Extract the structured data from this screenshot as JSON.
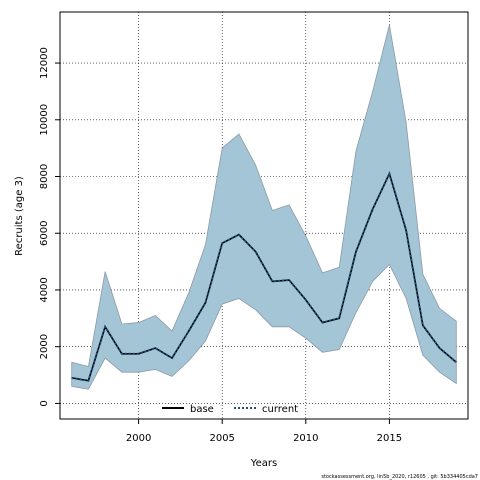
{
  "chart_data": {
    "type": "area",
    "xlabel": "Years",
    "ylabel": "Recruits (age 3)",
    "xlim": [
      1995.3,
      2019.7
    ],
    "ylim": [
      -550,
      13800
    ],
    "xticks": [
      2000,
      2005,
      2010,
      2015
    ],
    "yticks": [
      0,
      2000,
      4000,
      6000,
      8000,
      10000,
      12000
    ],
    "grid": true,
    "legend_position": "bottom-center",
    "x": [
      1996,
      1997,
      1998,
      1999,
      2000,
      2001,
      2002,
      2003,
      2004,
      2005,
      2006,
      2007,
      2008,
      2009,
      2010,
      2011,
      2012,
      2013,
      2014,
      2015,
      2016,
      2017,
      2018,
      2019
    ],
    "band": {
      "lower": [
        600,
        500,
        1600,
        1100,
        1100,
        1200,
        950,
        1500,
        2200,
        3500,
        3700,
        3300,
        2700,
        2700,
        2300,
        1800,
        1900,
        3200,
        4300,
        4900,
        3700,
        1700,
        1100,
        700
      ],
      "upper": [
        1450,
        1300,
        4650,
        2800,
        2850,
        3100,
        2550,
        3900,
        5600,
        9000,
        9500,
        8400,
        6800,
        7000,
        5900,
        4600,
        4800,
        8900,
        11000,
        13350,
        9900,
        4550,
        3350,
        2900
      ],
      "color": "#a4c5d6",
      "edge_color": "#8a9aa5"
    },
    "series": [
      {
        "name": "base",
        "style": "solid",
        "color": "#000000",
        "values": [
          900,
          800,
          2700,
          1750,
          1750,
          1950,
          1600,
          2550,
          3550,
          5650,
          5950,
          5350,
          4300,
          4350,
          3650,
          2850,
          3000,
          5350,
          6850,
          8100,
          6100,
          2750,
          1950,
          1450
        ]
      },
      {
        "name": "current",
        "style": "dotted",
        "color": "#1f4e79",
        "values": [
          900,
          800,
          2700,
          1750,
          1750,
          1950,
          1600,
          2550,
          3550,
          5650,
          5950,
          5350,
          4300,
          4350,
          3650,
          2850,
          3000,
          5350,
          6850,
          8100,
          6100,
          2750,
          1950,
          1450
        ]
      }
    ]
  },
  "footer": "stockassessment.org, lin5b_2020, r12605 , git: 5b334405cda7"
}
